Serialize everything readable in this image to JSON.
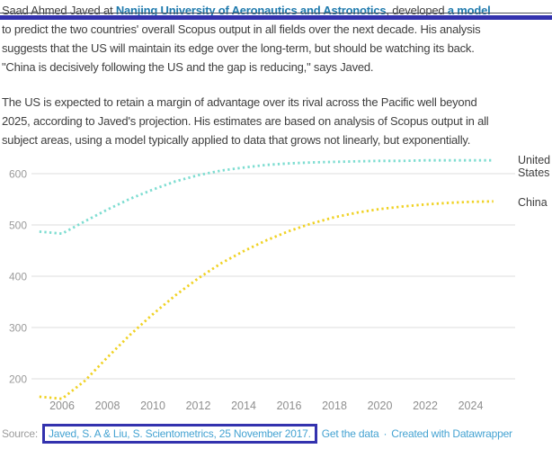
{
  "annotation": {
    "box_color": "#3332ae"
  },
  "article": {
    "p1": {
      "lead_text": "Saad Ahmed Javed at ",
      "link1": "Nanjing University of Aeronautics and Astronotics",
      "mid_text": ", developed ",
      "link2": "a model",
      "line2": "to predict the two countries' overall Scopus output in all fields over the next decade. His analysis",
      "line3": "suggests that the US will maintain its edge over the long-term, but should be watching its back.",
      "line4": "\"China is decisively following the US and the gap is reducing,\" says Javed."
    },
    "p2": {
      "line1": "The US is expected to retain a margin of advantage over its rival across the Pacific well beyond",
      "line2": "2025, according to Javed's projection. His estimates are based on analysis of Scopus output in all",
      "line3": "subject areas, using a model typically applied to data that grows not linearly, but exponentially."
    }
  },
  "chart_data": {
    "type": "line",
    "title": "",
    "xlabel": "",
    "ylabel": "",
    "line_style": "dotted",
    "grid": true,
    "legend_position": "right",
    "xlim": [
      2004.8,
      2025.5
    ],
    "ylim": [
      150,
      650
    ],
    "xticks": [
      2006,
      2008,
      2010,
      2012,
      2014,
      2016,
      2018,
      2020,
      2022,
      2024
    ],
    "yticks": [
      200,
      300,
      400,
      500,
      600
    ],
    "x": [
      2005,
      2006,
      2007,
      2008,
      2009,
      2010,
      2011,
      2012,
      2013,
      2014,
      2015,
      2016,
      2017,
      2018,
      2019,
      2020,
      2021,
      2022,
      2023,
      2024,
      2025
    ],
    "series": [
      {
        "name": "United States",
        "color": "#7eddd1",
        "values": [
          487,
          483,
          507,
          530,
          551,
          569,
          585,
          597,
          606,
          612,
          617,
          620,
          622,
          623,
          624,
          625,
          625,
          626,
          626,
          626,
          626
        ]
      },
      {
        "name": "China",
        "color": "#f0d225",
        "values": [
          165,
          161,
          196,
          242,
          286,
          326,
          363,
          396,
          425,
          449,
          470,
          488,
          503,
          515,
          524,
          531,
          536,
          540,
          543,
          545,
          546
        ]
      }
    ]
  },
  "footer": {
    "source_label": "Source:",
    "source_link": "Javed, S. A & Liu, S. Scientometrics, 25 November 2017.",
    "get_data": "Get the data",
    "separator": "·",
    "created": "Created with Datawrapper"
  }
}
